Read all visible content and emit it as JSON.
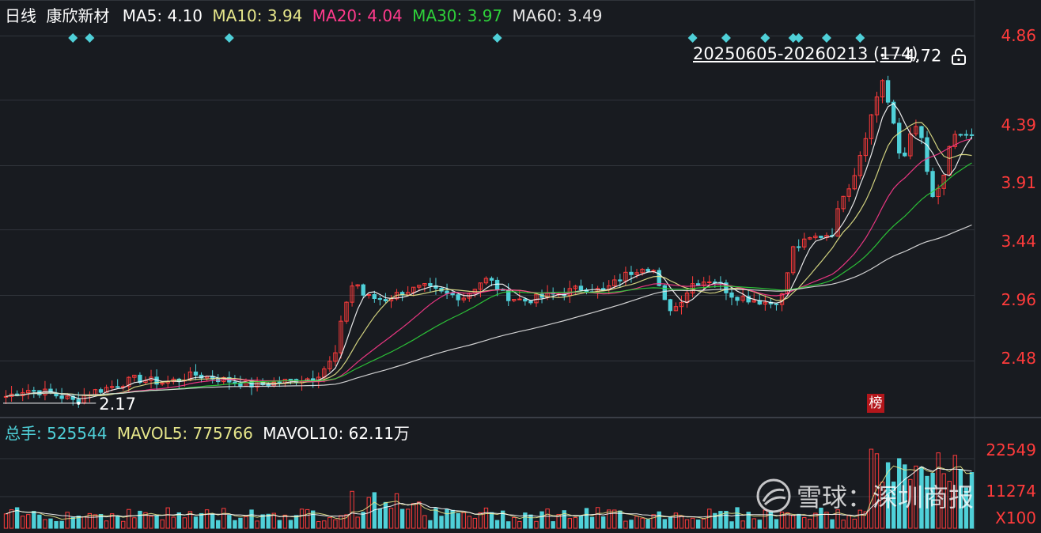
{
  "header": {
    "period": "日线",
    "stock_name": "康欣新材",
    "ma": [
      {
        "label": "MA5:",
        "value": "4.10",
        "color": "#ffffff"
      },
      {
        "label": "MA10:",
        "value": "3.94",
        "color": "#e6e68a"
      },
      {
        "label": "MA20:",
        "value": "4.04",
        "color": "#ff3a8c"
      },
      {
        "label": "MA30:",
        "value": "3.97",
        "color": "#2ed13a"
      },
      {
        "label": "MA60:",
        "value": "3.49",
        "color": "#e6e6e6"
      }
    ]
  },
  "volume_header": {
    "items": [
      {
        "label": "总手:",
        "value": "525544",
        "color": "#4fd0d8"
      },
      {
        "label": "MAVOL5:",
        "value": "775766",
        "color": "#e6e68a"
      },
      {
        "label": "MAVOL10:",
        "value": "62.11万",
        "color": "#ffffff"
      }
    ]
  },
  "range_label": "20250605-20260213 (174)",
  "badge": "榜",
  "watermark": "雪球：深圳商报",
  "colors": {
    "up": "#ff3b3b",
    "down": "#4fd0d8",
    "grid": "#30343b",
    "bg": "#181b20"
  },
  "chart_data": {
    "type": "candlestick",
    "y_ticks": [
      "4.86",
      "4.39",
      "3.91",
      "3.44",
      "2.96",
      "2.48"
    ],
    "ylim": [
      2.1,
      4.95
    ],
    "volume_ticks": [
      "22549",
      "11274",
      "X100"
    ],
    "volume_ylim": [
      0,
      22549
    ],
    "high_annotation": "4.72",
    "low_annotation": "2.17",
    "high_value": 4.72,
    "low_value": 2.17,
    "candle_count": 174,
    "series_names": [
      "MA5",
      "MA10",
      "MA20",
      "MA30",
      "MA60"
    ],
    "shape_keypoints": [
      [
        0,
        2.22
      ],
      [
        4,
        2.27
      ],
      [
        8,
        2.25
      ],
      [
        12,
        2.21
      ],
      [
        14,
        2.18
      ],
      [
        16,
        2.24
      ],
      [
        22,
        2.3
      ],
      [
        26,
        2.35
      ],
      [
        32,
        2.32
      ],
      [
        38,
        2.38
      ],
      [
        44,
        2.34
      ],
      [
        50,
        2.3
      ],
      [
        56,
        2.33
      ],
      [
        62,
        2.36
      ],
      [
        66,
        2.5
      ],
      [
        68,
        2.88
      ],
      [
        70,
        3.08
      ],
      [
        72,
        2.95
      ],
      [
        76,
        2.93
      ],
      [
        80,
        2.99
      ],
      [
        84,
        3.02
      ],
      [
        88,
        2.97
      ],
      [
        92,
        2.95
      ],
      [
        96,
        3.08
      ],
      [
        98,
        3.05
      ],
      [
        100,
        2.96
      ],
      [
        104,
        2.92
      ],
      [
        108,
        2.95
      ],
      [
        112,
        2.98
      ],
      [
        116,
        3.02
      ],
      [
        120,
        2.99
      ],
      [
        124,
        3.1
      ],
      [
        128,
        3.18
      ],
      [
        130,
        3.15
      ],
      [
        132,
        2.92
      ],
      [
        134,
        2.85
      ],
      [
        138,
        3.05
      ],
      [
        142,
        3.08
      ],
      [
        146,
        2.96
      ],
      [
        150,
        2.93
      ],
      [
        154,
        2.9
      ],
      [
        156,
        2.96
      ],
      [
        158,
        3.3
      ],
      [
        162,
        3.38
      ],
      [
        166,
        3.42
      ],
      [
        168,
        3.7
      ],
      [
        170,
        3.8
      ],
      [
        172,
        4.05
      ],
      [
        174,
        4.3
      ],
      [
        176,
        4.55
      ],
      [
        178,
        4.25
      ],
      [
        180,
        3.9
      ],
      [
        182,
        4.22
      ],
      [
        184,
        4.1
      ],
      [
        186,
        3.65
      ],
      [
        188,
        3.78
      ],
      [
        190,
        4.1
      ],
      [
        192,
        4.15
      ],
      [
        194,
        4.12
      ]
    ],
    "diamond_marker_indices": [
      14,
      17,
      45,
      99,
      138,
      145,
      152,
      158,
      159,
      165,
      172
    ]
  }
}
